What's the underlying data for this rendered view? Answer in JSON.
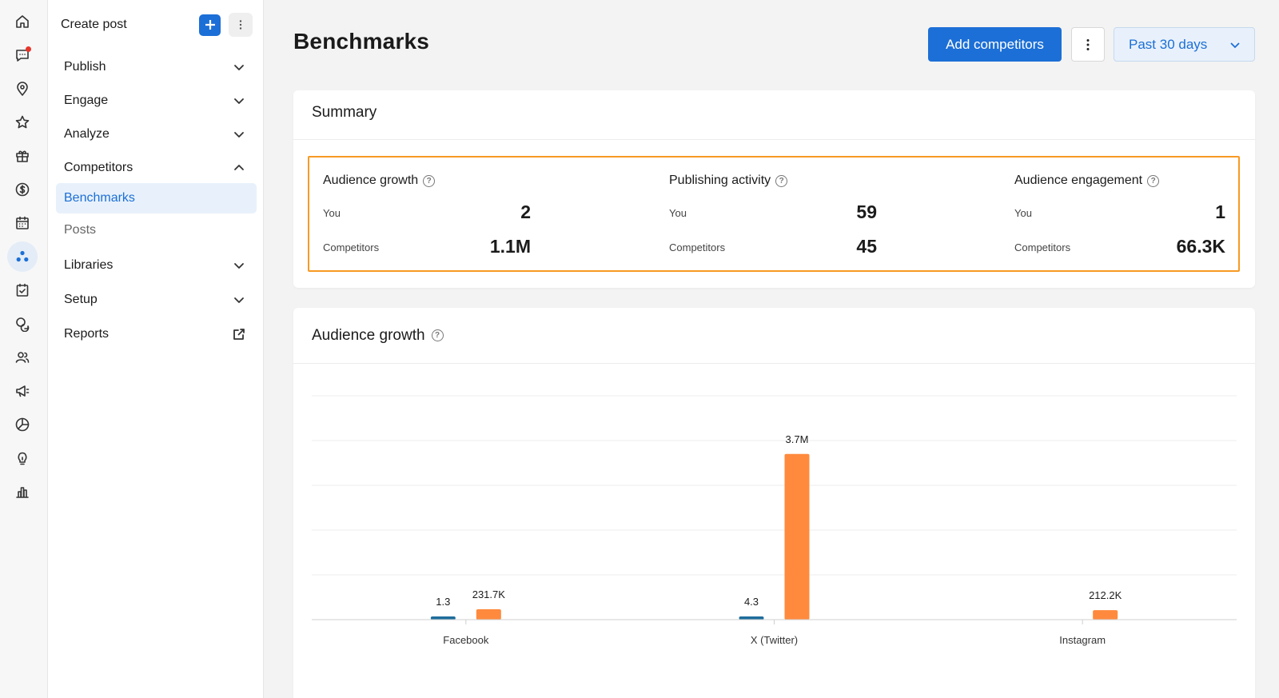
{
  "rail": {
    "icons": [
      "home-icon",
      "messages-icon",
      "location-pin-icon",
      "star-icon",
      "gift-icon",
      "dollar-icon",
      "calendar-icon",
      "competitors-icon",
      "tasks-icon",
      "chat-bubbles-icon",
      "people-icon",
      "megaphone-icon",
      "pie-chart-icon",
      "lightbulb-icon",
      "bar-chart-icon"
    ]
  },
  "sidebar": {
    "create_post": "Create post",
    "items": [
      {
        "label": "Publish"
      },
      {
        "label": "Engage"
      },
      {
        "label": "Analyze"
      },
      {
        "label": "Competitors"
      },
      {
        "label": "Benchmarks"
      },
      {
        "label": "Posts"
      },
      {
        "label": "Libraries"
      },
      {
        "label": "Setup"
      },
      {
        "label": "Reports"
      }
    ]
  },
  "header": {
    "title": "Benchmarks",
    "add_competitors": "Add competitors",
    "date_range": "Past 30 days"
  },
  "summary": {
    "title": "Summary",
    "you_label": "You",
    "competitors_label": "Competitors",
    "metrics": [
      {
        "title": "Audience growth",
        "you": "2",
        "competitors": "1.1M"
      },
      {
        "title": "Publishing activity",
        "you": "59",
        "competitors": "45"
      },
      {
        "title": "Audience engagement",
        "you": "1",
        "competitors": "66.3K"
      }
    ],
    "highlight_color": "#f79a24"
  },
  "audience_growth": {
    "title": "Audience growth"
  },
  "colors": {
    "accent": "#1c6fd6",
    "you_series": "#1e6d9c",
    "competitors_series": "#ff8a3d"
  },
  "chart_data": {
    "type": "bar",
    "categories": [
      "Facebook",
      "X (Twitter)",
      "Instagram"
    ],
    "series": [
      {
        "values": [
          1.3,
          4.3,
          0
        ],
        "labels": [
          "1.3",
          "4.3",
          ""
        ]
      },
      {
        "values": [
          231700,
          3700000,
          212200
        ],
        "labels": [
          "231.7K",
          "3.7M",
          "212.2K"
        ]
      }
    ],
    "ylim": [
      0,
      5000000
    ],
    "grid": true
  }
}
